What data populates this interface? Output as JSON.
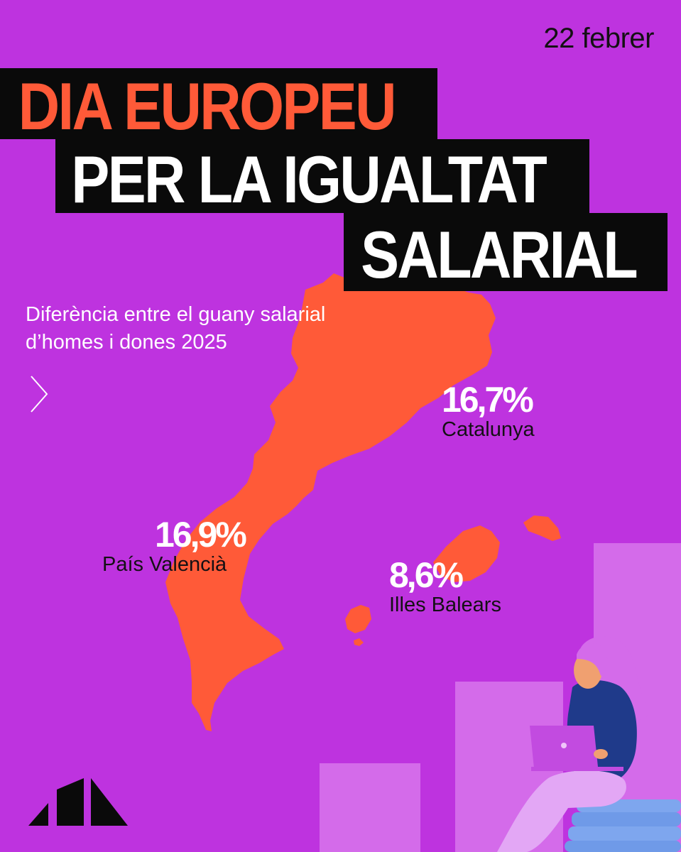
{
  "date": "22 febrer",
  "title": {
    "line1": "DIA EUROPEU",
    "line2": "PER LA IGUALTAT",
    "line3": "SALARIAL"
  },
  "subtitle": "Diferència entre el guany salarial d’homes i dones 2025",
  "regions": [
    {
      "percent": "16,7%",
      "name": "Catalunya"
    },
    {
      "percent": "16,9%",
      "name": "País Valencià"
    },
    {
      "percent": "8,6%",
      "name": "Illes Balears"
    }
  ],
  "colors": {
    "background": "#BE33DF",
    "accent": "#FF5A38",
    "title_box": "#0A0A0A",
    "chart_bars": "#D46BEA",
    "text_dark": "#141014"
  },
  "icons": {
    "next": "chevron-right-icon",
    "logo": "party-logo"
  }
}
